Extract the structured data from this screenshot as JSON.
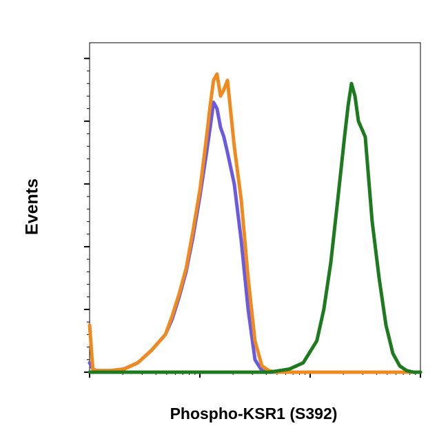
{
  "chart_data": {
    "type": "line",
    "x_label": "Phospho-KSR1 (S392)",
    "y_label": "Events",
    "x_log": true,
    "xlim": [
      1,
      1000
    ],
    "xticks": [
      1,
      10,
      100,
      1000
    ],
    "ylim": [
      0,
      105
    ],
    "yticks": [
      0,
      20,
      40,
      60,
      80,
      100
    ],
    "x": [
      1,
      1.07,
      1.15,
      1.54,
      2.05,
      2.74,
      3.65,
      4.87,
      5.62,
      6.49,
      7.5,
      8.66,
      10,
      11.5,
      12.4,
      13.3,
      14.3,
      15.4,
      16.5,
      17.8,
      20.5,
      23.7,
      27.4,
      31.6,
      36.5,
      42.2,
      48.7,
      64.9,
      86.6,
      115,
      133,
      154,
      178,
      205,
      221,
      237,
      255,
      274,
      316,
      365,
      422,
      487,
      562,
      649,
      750,
      866,
      1000
    ],
    "series": [
      {
        "color": "#6a5ae0",
        "values": [
          3,
          1,
          0.5,
          0.5,
          1,
          3,
          7,
          12,
          17,
          24,
          32,
          43,
          56,
          70,
          78,
          86,
          84,
          78,
          75,
          70,
          60,
          42,
          20,
          4,
          0.5,
          0,
          0,
          0,
          0,
          0,
          0,
          0,
          0,
          0,
          0,
          0,
          0,
          0,
          0,
          0,
          0,
          0,
          0,
          0,
          0,
          0,
          0
        ]
      },
      {
        "color": "#f08a1f",
        "values": [
          15,
          1,
          0.5,
          0.5,
          1,
          3,
          7,
          12,
          18,
          25,
          33,
          45,
          58,
          75,
          85,
          93,
          95,
          88,
          90,
          93,
          72,
          55,
          30,
          10,
          2,
          0.5,
          0,
          0,
          0,
          0,
          0,
          0,
          0,
          0,
          0,
          0,
          0,
          0,
          0,
          0,
          0,
          0,
          0,
          0,
          0,
          0,
          0
        ]
      },
      {
        "color": "#1e7a1e",
        "values": [
          0,
          0,
          0,
          0,
          0,
          0,
          0,
          0,
          0,
          0,
          0,
          0,
          0,
          0,
          0,
          0,
          0,
          0,
          0,
          0,
          0,
          0,
          0,
          0,
          0,
          0,
          0.3,
          1,
          3,
          10,
          20,
          35,
          55,
          75,
          85,
          92,
          88,
          80,
          75,
          48,
          30,
          15,
          6,
          2,
          0.5,
          0,
          0
        ]
      }
    ]
  }
}
